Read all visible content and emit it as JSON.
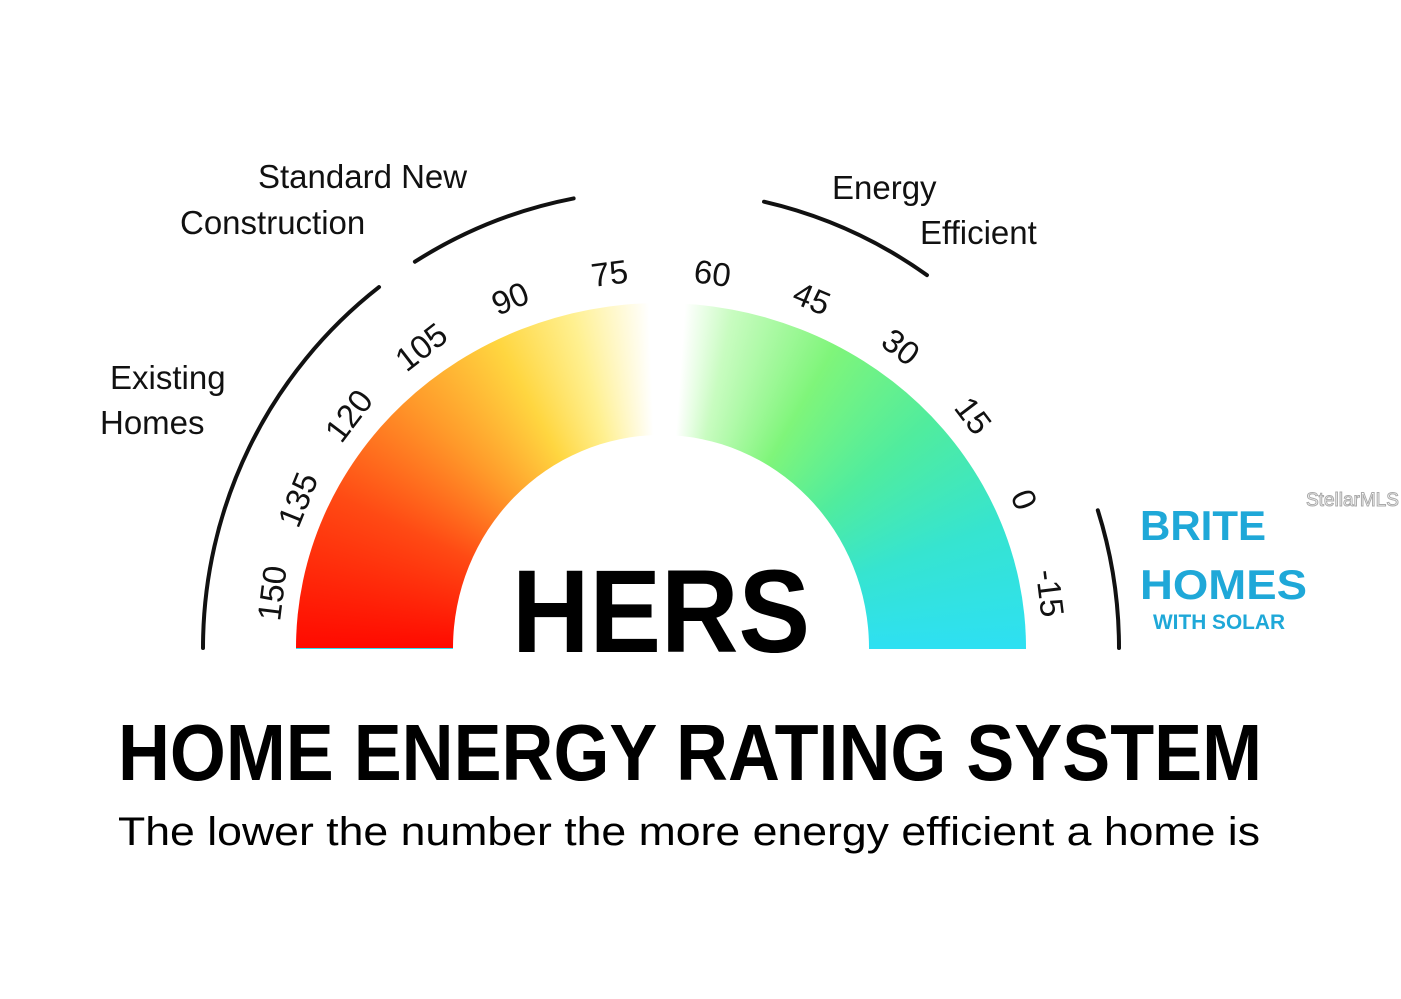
{
  "gauge": {
    "center_label": "HERS",
    "ticks": [
      "150",
      "135",
      "120",
      "105",
      "90",
      "75",
      "60",
      "45",
      "30",
      "15",
      "0",
      "-15"
    ],
    "gradient_colors": [
      "#ff0a00",
      "#ff9a2a",
      "#ffd640",
      "#ffffff",
      "#7ff57a",
      "#2ee0f2"
    ]
  },
  "categories": {
    "existing": [
      "Existing",
      "Homes"
    ],
    "standard": [
      "Standard New",
      "Construction"
    ],
    "efficient": [
      "Energy",
      "Efficient"
    ]
  },
  "title": "HOME ENERGY RATING SYSTEM",
  "subtitle": "The lower the number the more energy efficient a home is",
  "brand": {
    "line1": "BRITE",
    "line2": "HOMES",
    "line3": "WITH SOLAR",
    "color": "#1fa8d8"
  },
  "watermark": "StellarMLS"
}
